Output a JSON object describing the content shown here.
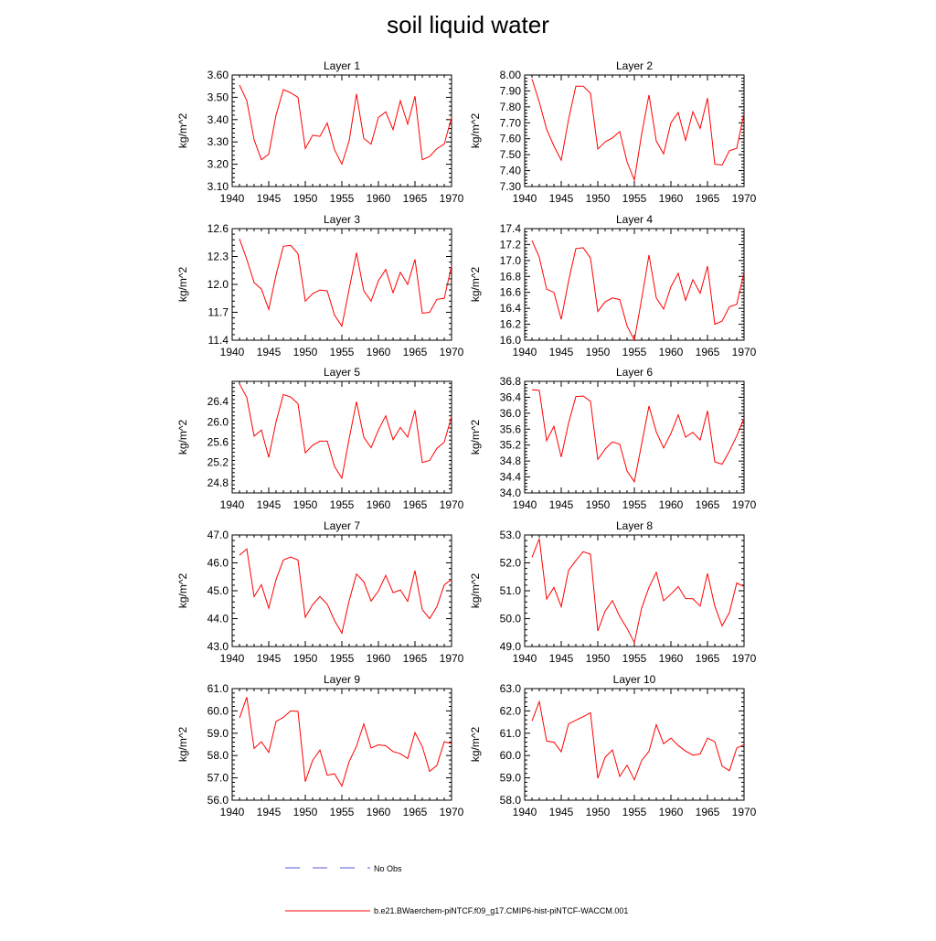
{
  "figure": {
    "title": "soil liquid water",
    "line_color": "#ff0000",
    "noobs_color": "#5a5ad8",
    "legend": {
      "noobs_label": "No Obs",
      "model_label": "b.e21.BWaerchem-piNTCF.f09_g17.CMIP6-hist-piNTCF-WACCM.001"
    }
  },
  "chart_data": [
    {
      "type": "line",
      "title": "Layer 1",
      "ylabel": "kg/m^2",
      "xlim": [
        1940,
        1970
      ],
      "ylim": [
        3.1,
        3.6
      ],
      "xticks": [
        1940,
        1945,
        1950,
        1955,
        1960,
        1965,
        1970
      ],
      "yticks": [
        "3.10",
        "3.20",
        "3.30",
        "3.40",
        "3.50",
        "3.60"
      ],
      "series": [
        {
          "x": [
            1941,
            1942,
            1943,
            1944,
            1945,
            1946,
            1947,
            1948,
            1949,
            1950,
            1951,
            1952,
            1953,
            1954,
            1955,
            1956,
            1957,
            1958,
            1959,
            1960,
            1961,
            1962,
            1963,
            1964,
            1965,
            1966,
            1967,
            1968,
            1969,
            1970
          ],
          "values": [
            3.555,
            3.485,
            3.31,
            3.22,
            3.245,
            3.42,
            3.535,
            3.52,
            3.5,
            3.27,
            3.33,
            3.325,
            3.385,
            3.265,
            3.2,
            3.305,
            3.515,
            3.315,
            3.29,
            3.41,
            3.435,
            3.355,
            3.485,
            3.38,
            3.505,
            3.22,
            3.235,
            3.27,
            3.29,
            3.41
          ]
        }
      ]
    },
    {
      "type": "line",
      "title": "Layer 2",
      "ylabel": "kg/m^2",
      "xlim": [
        1940,
        1970
      ],
      "ylim": [
        7.3,
        8.0
      ],
      "xticks": [
        1940,
        1945,
        1950,
        1955,
        1960,
        1965,
        1970
      ],
      "yticks": [
        "7.30",
        "7.40",
        "7.50",
        "7.60",
        "7.70",
        "7.80",
        "7.90",
        "8.00"
      ],
      "series": [
        {
          "x": [
            1941,
            1942,
            1943,
            1944,
            1945,
            1946,
            1947,
            1948,
            1949,
            1950,
            1951,
            1952,
            1953,
            1954,
            1955,
            1956,
            1957,
            1958,
            1959,
            1960,
            1961,
            1962,
            1963,
            1964,
            1965,
            1966,
            1967,
            1968,
            1969,
            1970
          ],
          "values": [
            7.975,
            7.83,
            7.66,
            7.555,
            7.465,
            7.72,
            7.93,
            7.93,
            7.885,
            7.535,
            7.58,
            7.605,
            7.645,
            7.455,
            7.34,
            7.63,
            7.875,
            7.585,
            7.505,
            7.7,
            7.765,
            7.59,
            7.77,
            7.665,
            7.855,
            7.44,
            7.435,
            7.525,
            7.54,
            7.76
          ]
        }
      ]
    },
    {
      "type": "line",
      "title": "Layer 3",
      "ylabel": "kg/m^2",
      "xlim": [
        1940,
        1970
      ],
      "ylim": [
        11.4,
        12.6
      ],
      "xticks": [
        1940,
        1945,
        1950,
        1955,
        1960,
        1965,
        1970
      ],
      "yticks": [
        "11.4",
        "11.7",
        "12.0",
        "12.3",
        "12.6"
      ],
      "series": [
        {
          "x": [
            1941,
            1942,
            1943,
            1944,
            1945,
            1946,
            1947,
            1948,
            1949,
            1950,
            1951,
            1952,
            1953,
            1954,
            1955,
            1956,
            1957,
            1958,
            1959,
            1960,
            1961,
            1962,
            1963,
            1964,
            1965,
            1966,
            1967,
            1968,
            1969,
            1970
          ],
          "values": [
            12.49,
            12.27,
            12.02,
            11.95,
            11.73,
            12.1,
            12.41,
            12.42,
            12.33,
            11.82,
            11.9,
            11.94,
            11.93,
            11.67,
            11.55,
            11.95,
            12.34,
            11.93,
            11.82,
            12.04,
            12.16,
            11.91,
            12.13,
            12.0,
            12.27,
            11.69,
            11.7,
            11.84,
            11.85,
            12.2
          ]
        }
      ]
    },
    {
      "type": "line",
      "title": "Layer 4",
      "ylabel": "kg/m^2",
      "xlim": [
        1940,
        1970
      ],
      "ylim": [
        16.0,
        17.4
      ],
      "xticks": [
        1940,
        1945,
        1950,
        1955,
        1960,
        1965,
        1970
      ],
      "yticks": [
        "16.0",
        "16.2",
        "16.4",
        "16.6",
        "16.8",
        "17.0",
        "17.2",
        "17.4"
      ],
      "series": [
        {
          "x": [
            1941,
            1942,
            1943,
            1944,
            1945,
            1946,
            1947,
            1948,
            1949,
            1950,
            1951,
            1952,
            1953,
            1954,
            1955,
            1956,
            1957,
            1958,
            1959,
            1960,
            1961,
            1962,
            1963,
            1964,
            1965,
            1966,
            1967,
            1968,
            1969,
            1970
          ],
          "values": [
            17.25,
            17.04,
            16.64,
            16.6,
            16.26,
            16.74,
            17.15,
            17.16,
            17.03,
            16.36,
            16.48,
            16.53,
            16.51,
            16.18,
            16.0,
            16.52,
            17.07,
            16.53,
            16.39,
            16.67,
            16.84,
            16.5,
            16.76,
            16.59,
            16.93,
            16.2,
            16.24,
            16.42,
            16.45,
            16.85
          ]
        }
      ]
    },
    {
      "type": "line",
      "title": "Layer 5",
      "ylabel": "kg/m^2",
      "xlim": [
        1940,
        1970
      ],
      "ylim": [
        24.6,
        26.8
      ],
      "xticks": [
        1940,
        1945,
        1950,
        1955,
        1960,
        1965,
        1970
      ],
      "yticks": [
        "24.8",
        "25.2",
        "25.6",
        "26.0",
        "26.4"
      ],
      "series": [
        {
          "x": [
            1941,
            1942,
            1943,
            1944,
            1945,
            1946,
            1947,
            1948,
            1949,
            1950,
            1951,
            1952,
            1953,
            1954,
            1955,
            1956,
            1957,
            1958,
            1959,
            1960,
            1961,
            1962,
            1963,
            1964,
            1965,
            1966,
            1967,
            1968,
            1969,
            1970
          ],
          "values": [
            26.75,
            26.48,
            25.72,
            25.84,
            25.3,
            26.0,
            26.54,
            26.49,
            26.36,
            25.39,
            25.54,
            25.62,
            25.62,
            25.12,
            24.89,
            25.67,
            26.4,
            25.7,
            25.49,
            25.84,
            26.12,
            25.65,
            25.89,
            25.7,
            26.23,
            25.2,
            25.24,
            25.48,
            25.6,
            26.11
          ]
        }
      ]
    },
    {
      "type": "line",
      "title": "Layer 6",
      "ylabel": "kg/m^2",
      "xlim": [
        1940,
        1970
      ],
      "ylim": [
        34.0,
        36.8
      ],
      "xticks": [
        1940,
        1945,
        1950,
        1955,
        1960,
        1965,
        1970
      ],
      "yticks": [
        "34.0",
        "34.4",
        "34.8",
        "35.2",
        "35.6",
        "36.0",
        "36.4",
        "36.8"
      ],
      "series": [
        {
          "x": [
            1941,
            1942,
            1943,
            1944,
            1945,
            1946,
            1947,
            1948,
            1949,
            1950,
            1951,
            1952,
            1953,
            1954,
            1955,
            1956,
            1957,
            1958,
            1959,
            1960,
            1961,
            1962,
            1963,
            1964,
            1965,
            1966,
            1967,
            1968,
            1969,
            1970
          ],
          "values": [
            36.59,
            36.57,
            35.31,
            35.67,
            34.9,
            35.75,
            36.42,
            36.43,
            36.3,
            34.84,
            35.1,
            35.28,
            35.22,
            34.55,
            34.28,
            35.23,
            36.18,
            35.53,
            35.13,
            35.49,
            35.96,
            35.4,
            35.52,
            35.33,
            36.06,
            34.78,
            34.72,
            35.05,
            35.43,
            35.87
          ]
        }
      ]
    },
    {
      "type": "line",
      "title": "Layer 7",
      "ylabel": "kg/m^2",
      "xlim": [
        1940,
        1970
      ],
      "ylim": [
        43.0,
        47.0
      ],
      "xticks": [
        1940,
        1945,
        1950,
        1955,
        1960,
        1965,
        1970
      ],
      "yticks": [
        "43.0",
        "44.0",
        "45.0",
        "46.0",
        "47.0"
      ],
      "series": [
        {
          "x": [
            1941,
            1942,
            1943,
            1944,
            1945,
            1946,
            1947,
            1948,
            1949,
            1950,
            1951,
            1952,
            1953,
            1954,
            1955,
            1956,
            1957,
            1958,
            1959,
            1960,
            1961,
            1962,
            1963,
            1964,
            1965,
            1966,
            1967,
            1968,
            1969,
            1970
          ],
          "values": [
            46.27,
            46.5,
            44.79,
            45.22,
            44.37,
            45.4,
            46.1,
            46.21,
            46.1,
            44.05,
            44.5,
            44.79,
            44.52,
            43.93,
            43.48,
            44.65,
            45.6,
            45.32,
            44.63,
            44.99,
            45.55,
            44.93,
            45.03,
            44.62,
            45.72,
            44.32,
            44.0,
            44.43,
            45.21,
            45.41
          ]
        }
      ]
    },
    {
      "type": "line",
      "title": "Layer 8",
      "ylabel": "kg/m^2",
      "xlim": [
        1940,
        1970
      ],
      "ylim": [
        49.0,
        53.0
      ],
      "xticks": [
        1940,
        1945,
        1950,
        1955,
        1960,
        1965,
        1970
      ],
      "yticks": [
        "49.0",
        "50.0",
        "51.0",
        "52.0",
        "53.0"
      ],
      "series": [
        {
          "x": [
            1941,
            1942,
            1943,
            1944,
            1945,
            1946,
            1947,
            1948,
            1949,
            1950,
            1951,
            1952,
            1953,
            1954,
            1955,
            1956,
            1957,
            1958,
            1959,
            1960,
            1961,
            1962,
            1963,
            1964,
            1965,
            1966,
            1967,
            1968,
            1969,
            1970
          ],
          "values": [
            52.2,
            52.87,
            50.7,
            51.12,
            50.43,
            51.73,
            52.08,
            52.4,
            52.31,
            49.56,
            50.27,
            50.65,
            50.08,
            49.65,
            49.14,
            50.38,
            51.12,
            51.66,
            50.64,
            50.88,
            51.15,
            50.72,
            50.71,
            50.45,
            51.62,
            50.45,
            49.74,
            50.22,
            51.28,
            51.15
          ]
        }
      ]
    },
    {
      "type": "line",
      "title": "Layer 9",
      "ylabel": "kg/m^2",
      "xlim": [
        1940,
        1970
      ],
      "ylim": [
        56.0,
        61.0
      ],
      "xticks": [
        1940,
        1945,
        1950,
        1955,
        1960,
        1965,
        1970
      ],
      "yticks": [
        "56.0",
        "57.0",
        "58.0",
        "59.0",
        "60.0",
        "61.0"
      ],
      "series": [
        {
          "x": [
            1941,
            1942,
            1943,
            1944,
            1945,
            1946,
            1947,
            1948,
            1949,
            1950,
            1951,
            1952,
            1953,
            1954,
            1955,
            1956,
            1957,
            1958,
            1959,
            1960,
            1961,
            1962,
            1963,
            1964,
            1965,
            1966,
            1967,
            1968,
            1969,
            1970
          ],
          "values": [
            59.68,
            60.62,
            58.32,
            58.62,
            58.14,
            59.53,
            59.71,
            60.0,
            59.98,
            56.83,
            57.78,
            58.25,
            57.12,
            57.18,
            56.63,
            57.73,
            58.42,
            59.42,
            58.34,
            58.48,
            58.44,
            58.18,
            58.08,
            57.87,
            59.03,
            58.4,
            57.29,
            57.56,
            58.62,
            58.54
          ]
        }
      ]
    },
    {
      "type": "line",
      "title": "Layer 10",
      "ylabel": "kg/m^2",
      "xlim": [
        1940,
        1970
      ],
      "ylim": [
        58.0,
        63.0
      ],
      "xticks": [
        1940,
        1945,
        1950,
        1955,
        1960,
        1965,
        1970
      ],
      "yticks": [
        "58.0",
        "59.0",
        "60.0",
        "61.0",
        "62.0",
        "63.0"
      ],
      "series": [
        {
          "x": [
            1941,
            1942,
            1943,
            1944,
            1945,
            1946,
            1947,
            1948,
            1949,
            1950,
            1951,
            1952,
            1953,
            1954,
            1955,
            1956,
            1957,
            1958,
            1959,
            1960,
            1961,
            1962,
            1963,
            1964,
            1965,
            1966,
            1967,
            1968,
            1969,
            1970
          ],
          "values": [
            61.55,
            62.42,
            60.65,
            60.6,
            60.17,
            61.42,
            61.58,
            61.74,
            61.92,
            58.98,
            59.92,
            60.25,
            59.06,
            59.57,
            58.91,
            59.78,
            60.19,
            61.38,
            60.53,
            60.78,
            60.45,
            60.2,
            60.02,
            60.07,
            60.78,
            60.62,
            59.53,
            59.32,
            60.33,
            60.49
          ]
        }
      ]
    }
  ]
}
